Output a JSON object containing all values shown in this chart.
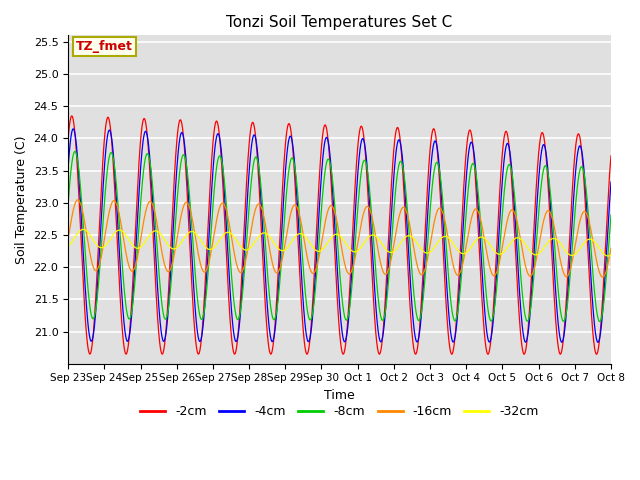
{
  "title": "Tonzi Soil Temperatures Set C",
  "xlabel": "Time",
  "ylabel": "Soil Temperature (C)",
  "ylim": [
    20.5,
    25.6
  ],
  "yticks": [
    21.0,
    21.5,
    22.0,
    22.5,
    23.0,
    23.5,
    24.0,
    24.5,
    25.0,
    25.5
  ],
  "x_labels": [
    "Sep 23",
    "Sep 24",
    "Sep 25",
    "Sep 26",
    "Sep 27",
    "Sep 28",
    "Sep 29",
    "Sep 30",
    "Oct 1",
    "Oct 2",
    "Oct 3",
    "Oct 4",
    "Oct 5",
    "Oct 6",
    "Oct 7",
    "Oct 8"
  ],
  "annotation_text": "TZ_fmet",
  "annotation_color": "#cc0000",
  "annotation_bg": "#ffffee",
  "annotation_border": "#aaaa00",
  "series": [
    {
      "label": "-2cm",
      "color": "#ff0000",
      "amplitude": 1.85,
      "phase": 0.0,
      "mean": 22.5
    },
    {
      "label": "-4cm",
      "color": "#0000ff",
      "amplitude": 1.65,
      "phase": 0.25,
      "mean": 22.5
    },
    {
      "label": "-8cm",
      "color": "#00cc00",
      "amplitude": 1.3,
      "phase": 0.55,
      "mean": 22.5
    },
    {
      "label": "-16cm",
      "color": "#ff8800",
      "amplitude": 0.55,
      "phase": 1.05,
      "mean": 22.5
    },
    {
      "label": "-32cm",
      "color": "#ffff00",
      "amplitude": 0.14,
      "phase": 2.0,
      "mean": 22.45
    }
  ],
  "bg_color": "#e0e0e0",
  "grid_color": "#ffffff",
  "n_points": 4800,
  "total_days": 15.0
}
